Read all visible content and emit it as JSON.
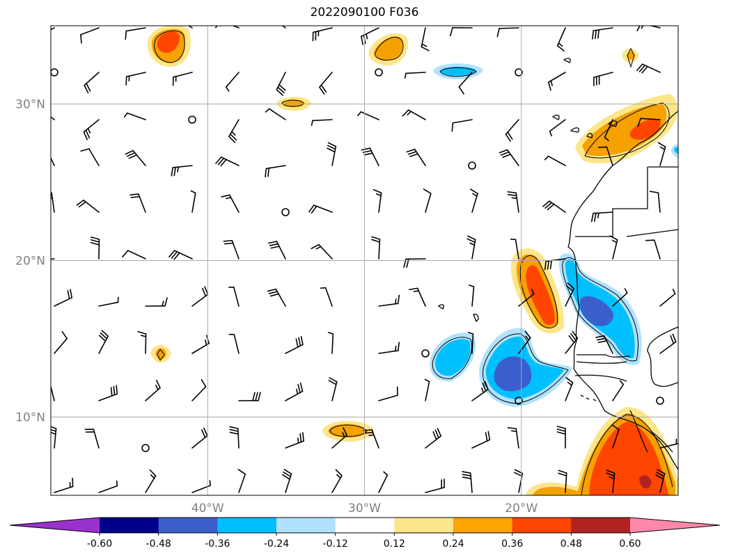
{
  "title": "2022090100 F036",
  "map": {
    "lat_labels": [
      {
        "text": "30°N",
        "lat": 30
      },
      {
        "text": "20°N",
        "lat": 20
      },
      {
        "text": "10°N",
        "lat": 10
      }
    ],
    "lon_labels": [
      {
        "text": "40°W",
        "lon": -40
      },
      {
        "text": "30°W",
        "lon": -30
      },
      {
        "text": "20°W",
        "lon": -20
      }
    ],
    "extent": {
      "lon_min": -50,
      "lon_max": -10,
      "lat_min": 5,
      "lat_max": 35
    },
    "grid": true
  },
  "colorbar": {
    "ticks": [
      "-0.60",
      "-0.48",
      "-0.36",
      "-0.24",
      "-0.12",
      "0.12",
      "0.24",
      "0.36",
      "0.48",
      "0.60"
    ],
    "colors": [
      "#9932cc",
      "#00008b",
      "#3a5fcd",
      "#00bfff",
      "#b0e2ff",
      "#ffffff",
      "#fde68a",
      "#ffa500",
      "#ff4500",
      "#b22222",
      "#ff88aa"
    ]
  },
  "field_colors": {
    "light_pos": "#fde68a",
    "mid_pos": "#f5a100",
    "high_pos": "#ff4500",
    "top_pos": "#b22222",
    "light_neg": "#b0e2ff",
    "mid_neg": "#00bfff",
    "high_neg": "#3a5fcd"
  }
}
